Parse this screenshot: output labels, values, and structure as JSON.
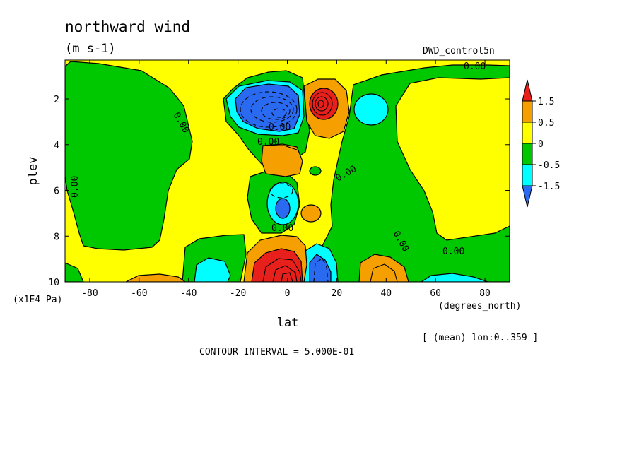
{
  "header": {
    "title": "northward wind",
    "units": "(m s-1)",
    "dataset": "DWD_control5n"
  },
  "footer": {
    "region": "[ (mean) lon:0..359 ]",
    "contour_interval": "CONTOUR INTERVAL = 5.000E-01"
  },
  "chart_data": {
    "type": "heatmap",
    "title": "northward wind",
    "subtitle": "(m s-1)",
    "xlabel": "lat",
    "x_units": "(degrees_north)",
    "ylabel": "plev",
    "y_units": "(x1E4 Pa)",
    "xlim": [
      -90,
      90
    ],
    "ylim": [
      10,
      0.3
    ],
    "x_ticks": [
      -80,
      -60,
      -40,
      -20,
      0,
      20,
      40,
      60,
      80
    ],
    "y_ticks": [
      2,
      4,
      6,
      8,
      10
    ],
    "contour_interval": 0.5,
    "contour_label": "0.00",
    "colorbar": {
      "levels": [
        "1.5",
        "0.5",
        "0",
        "-0.5",
        "-1.5"
      ],
      "colors": [
        "#e8201c",
        "#f5a000",
        "#ffff00",
        "#00c800",
        "#00ffff",
        "#2a6af0"
      ]
    },
    "colors": {
      "strong_positive": "#e8201c",
      "positive": "#f5a000",
      "near_zero_positive": "#ffff00",
      "near_zero_negative": "#00c800",
      "negative": "#00ffff",
      "strong_negative": "#2a6af0"
    },
    "features": [
      {
        "lat": -5,
        "plev": 2.0,
        "value": -2.5
      },
      {
        "lat": 13,
        "plev": 2.0,
        "value": 2.0
      },
      {
        "lat": 33,
        "plev": 2.2,
        "value": -0.8
      },
      {
        "lat": -10,
        "plev": 4.5,
        "value": 0.8
      },
      {
        "lat": 12,
        "plev": 5.0,
        "value": -0.3
      },
      {
        "lat": -4,
        "plev": 6.8,
        "value": -1.2
      },
      {
        "lat": 8,
        "plev": 7.0,
        "value": 0.6
      },
      {
        "lat": -5,
        "plev": 9.5,
        "value": 3.0
      },
      {
        "lat": 10,
        "plev": 9.3,
        "value": -2.2
      },
      {
        "lat": 38,
        "plev": 9.6,
        "value": 1.0
      },
      {
        "lat": -30,
        "plev": 9.6,
        "value": -0.6
      },
      {
        "lat": -58,
        "plev": 9.9,
        "value": 0.6
      },
      {
        "lat": 68,
        "plev": 10.0,
        "value": -0.6
      }
    ]
  }
}
